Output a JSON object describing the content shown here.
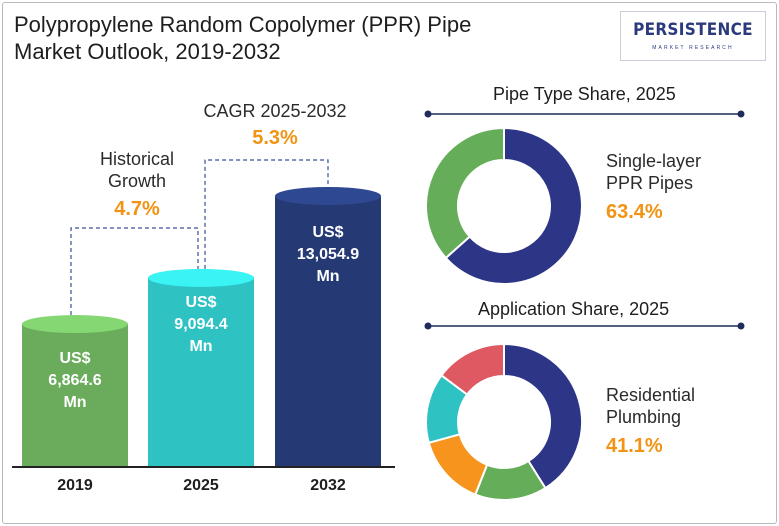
{
  "title": "Polypropylene Random Copolymer (PPR) Pipe\nMarket Outlook, 2019-2032",
  "logo": {
    "word": "PERSISTENCE",
    "sub": "MARKET RESEARCH"
  },
  "chart_data": [
    {
      "type": "bar",
      "categories": [
        "2019",
        "2025",
        "2032"
      ],
      "values": [
        6864.6,
        9094.4,
        13054.9
      ],
      "bar_labels": [
        "US$\n6,864.6\nMn",
        "US$\n9,094.4\nMn",
        "US$\n13,054.9\nMn"
      ],
      "colors": [
        "#6aac5c",
        "#2ec2c2",
        "#253a74"
      ],
      "annotations": [
        {
          "label": "Historical\nGrowth",
          "value": "4.7%"
        },
        {
          "label": "CAGR 2025-2032",
          "value": "5.3%"
        }
      ]
    },
    {
      "type": "pie",
      "title": "Pipe Type Share, 2025",
      "slices": [
        {
          "label": "Single-layer\nPPR Pipes",
          "value": 63.4,
          "value_label": "63.4%",
          "color": "#2d3587"
        },
        {
          "label": "",
          "value": 36.6,
          "color": "#66ad5a"
        }
      ]
    },
    {
      "type": "pie",
      "title": "Application Share, 2025",
      "slices": [
        {
          "label": "Residential\nPlumbing",
          "value": 41.1,
          "value_label": "41.1%",
          "color": "#2d3587"
        },
        {
          "label": "",
          "value": 14.9,
          "color": "#66ad5a"
        },
        {
          "label": "",
          "value": 14.7,
          "color": "#f6941d"
        },
        {
          "label": "",
          "value": 14.5,
          "color": "#2ec2c2"
        },
        {
          "label": "",
          "value": 14.8,
          "color": "#de5961"
        }
      ]
    }
  ]
}
